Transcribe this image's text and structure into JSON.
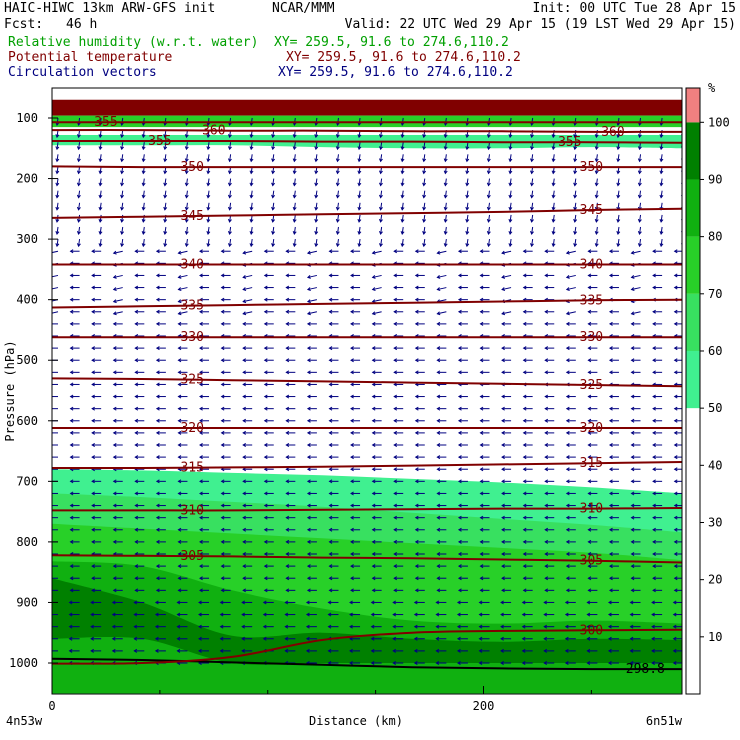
{
  "header": {
    "model": "HAIC-HIWC 13km ARW-GFS init",
    "center": "NCAR/MMM",
    "init": "Init: 00 UTC Tue 28 Apr 15",
    "fcst_label": "Fcst:",
    "fcst_value": "46 h",
    "valid": "Valid: 22 UTC Wed 29 Apr 15 (19 LST Wed 29 Apr 15)",
    "fields": [
      {
        "name": "Relative humidity (w.r.t. water)",
        "xy": "XY= 259.5, 91.6 to 274.6,110.2",
        "color": "#00a000"
      },
      {
        "name": "Potential temperature",
        "xy": "XY= 259.5, 91.6 to 274.6,110.2",
        "color": "#800000"
      },
      {
        "name": "Circulation vectors",
        "xy": "XY= 259.5, 91.6 to 274.6,110.2",
        "color": "#000080"
      }
    ]
  },
  "chart_data": {
    "type": "cross-section",
    "ylabel": "Pressure (hPa)",
    "xlabel": "Distance (km)",
    "x_ticks": [
      0,
      200
    ],
    "x_range": [
      0,
      292
    ],
    "y_ticks": [
      100,
      200,
      300,
      400,
      500,
      600,
      700,
      800,
      900,
      1000
    ],
    "y_range_hPa": [
      70,
      1050
    ],
    "endpoint_left": "4n53w",
    "endpoint_right": "6n51w",
    "colorbar": {
      "unit": "%",
      "labels": [
        "10",
        "20",
        "30",
        "40",
        "50",
        "60",
        "70",
        "80",
        "90",
        "100"
      ],
      "bins": [
        {
          "from": 50,
          "to": 60,
          "color": "#40f090"
        },
        {
          "from": 60,
          "to": 70,
          "color": "#38e060"
        },
        {
          "from": 70,
          "to": 80,
          "color": "#28d028"
        },
        {
          "from": 80,
          "to": 90,
          "color": "#10b010"
        },
        {
          "from": 90,
          "to": 100,
          "color": "#008000"
        },
        {
          "from": 100,
          "to": 106,
          "color": "#f08080"
        }
      ]
    },
    "theta_contours": [
      {
        "value": 298.8,
        "label": "298.8",
        "p": [
          993,
          995,
          999,
          1003,
          1007,
          1009,
          1010,
          1010
        ],
        "label_x": [
          275
        ]
      },
      {
        "value": 300,
        "label": "300",
        "p": [
          1001,
          1000,
          990,
          962,
          950,
          947,
          946,
          945
        ],
        "label_x": [
          250
        ]
      },
      {
        "value": 305,
        "label": "305",
        "p": [
          822,
          823,
          824,
          826,
          827,
          829,
          831,
          834
        ],
        "label_x": [
          65,
          250
        ]
      },
      {
        "value": 310,
        "label": "310",
        "p": [
          748,
          748,
          748,
          747,
          746,
          745,
          745,
          744
        ],
        "label_x": [
          65,
          250
        ]
      },
      {
        "value": 315,
        "label": "315",
        "p": [
          678,
          678,
          677,
          676,
          674,
          672,
          670,
          668
        ],
        "label_x": [
          65,
          250
        ]
      },
      {
        "value": 320,
        "label": "320",
        "p": [
          612,
          612,
          612,
          612,
          612,
          612,
          612,
          612
        ],
        "label_x": [
          65,
          250
        ]
      },
      {
        "value": 325,
        "label": "325",
        "p": [
          530,
          531,
          533,
          535,
          537,
          539,
          541,
          543
        ],
        "label_x": [
          65,
          250
        ]
      },
      {
        "value": 330,
        "label": "330",
        "p": [
          462,
          462,
          462,
          462,
          462,
          462,
          462,
          462
        ],
        "label_x": [
          65,
          250
        ]
      },
      {
        "value": 335,
        "label": "335",
        "p": [
          413,
          411,
          409,
          407,
          405,
          403,
          401,
          400
        ],
        "label_x": [
          65,
          250
        ]
      },
      {
        "value": 340,
        "label": "340",
        "p": [
          342,
          342,
          342,
          342,
          342,
          342,
          342,
          342
        ],
        "label_x": [
          65,
          250
        ]
      },
      {
        "value": 345,
        "label": "345",
        "p": [
          265,
          263,
          261,
          259,
          257,
          255,
          252,
          250
        ],
        "label_x": [
          65,
          250
        ]
      },
      {
        "value": 350,
        "label": "350",
        "p": [
          180,
          181,
          181,
          181,
          181,
          181,
          181,
          181
        ],
        "label_x": [
          65,
          250
        ]
      },
      {
        "value": 355,
        "label": "355",
        "p": [
          138,
          138,
          138,
          139,
          139,
          140,
          140,
          141
        ],
        "label_x": [
          50,
          240
        ]
      },
      {
        "value": 355,
        "label": "355",
        "p": [
          107,
          107,
          107,
          107,
          107,
          107,
          107,
          107
        ],
        "label_x": [
          25
        ]
      },
      {
        "value": 360,
        "label": "360",
        "p": [
          120,
          120,
          121,
          121,
          122,
          122,
          123,
          123
        ],
        "label_x": [
          75,
          260
        ]
      }
    ],
    "rh_regions": [
      {
        "level": 100,
        "color": "#800000",
        "top": [
          70,
          70,
          70,
          70,
          70,
          70,
          70,
          70
        ],
        "bottom": [
          96,
          96,
          96,
          96,
          96,
          96,
          96,
          96
        ]
      },
      {
        "level": 80,
        "color": "#28d028",
        "top": [
          96,
          96,
          96,
          96,
          96,
          96,
          96,
          96
        ],
        "bottom": [
          115,
          115,
          115,
          115,
          115,
          115,
          115,
          115
        ]
      },
      {
        "level": 50,
        "color": "#40f090",
        "top": [
          128,
          128,
          128,
          128,
          128,
          128,
          128,
          128
        ],
        "bottom": [
          145,
          145,
          145,
          148,
          150,
          150,
          148,
          150
        ]
      },
      {
        "level": 50,
        "color": "#40f090",
        "top": [
          680,
          682,
          686,
          690,
          696,
          702,
          710,
          720
        ],
        "bottom": [
          1050,
          1050,
          1050,
          1050,
          1050,
          1050,
          1050,
          1050
        ]
      },
      {
        "level": 60,
        "color": "#38e060",
        "top": [
          720,
          726,
          734,
          742,
          752,
          762,
          772,
          784
        ],
        "bottom": [
          1050,
          1050,
          1050,
          1050,
          1050,
          1050,
          1050,
          1050
        ]
      },
      {
        "level": 70,
        "color": "#28d028",
        "top": [
          770,
          778,
          786,
          794,
          802,
          810,
          818,
          830
        ],
        "bottom": [
          1050,
          1050,
          1050,
          1050,
          1050,
          1050,
          1050,
          1050
        ]
      },
      {
        "level": 80,
        "color": "#10b010",
        "top": [
          832,
          840,
          880,
          910,
          930,
          935,
          930,
          935
        ],
        "bottom": [
          1050,
          1050,
          1050,
          1050,
          1050,
          1050,
          1050,
          1050
        ]
      },
      {
        "level": 90,
        "color": "#008000",
        "top": [
          860,
          900,
          955,
          950,
          960,
          965,
          960,
          962
        ],
        "bottom": [
          960,
          960,
          1000,
          1000,
          1000,
          1000,
          1000,
          1000
        ]
      }
    ],
    "vectors": {
      "color": "#000080",
      "rows_hPa": [
        100,
        120,
        140,
        160,
        180,
        200,
        220,
        240,
        260,
        280,
        300,
        320,
        340,
        360,
        380,
        400,
        420,
        440,
        460,
        480,
        500,
        520,
        540,
        560,
        580,
        600,
        620,
        640,
        660,
        680,
        700,
        720,
        740,
        760,
        780,
        800,
        820,
        840,
        860,
        880,
        900,
        920,
        940,
        960,
        980,
        1000
      ],
      "cols_km": [
        0,
        10,
        20,
        30,
        40,
        50,
        60,
        70,
        80,
        90,
        100,
        110,
        120,
        130,
        140,
        150,
        160,
        170,
        180,
        190,
        200,
        210,
        220,
        230,
        240,
        250,
        260,
        270,
        280,
        290
      ]
    }
  }
}
